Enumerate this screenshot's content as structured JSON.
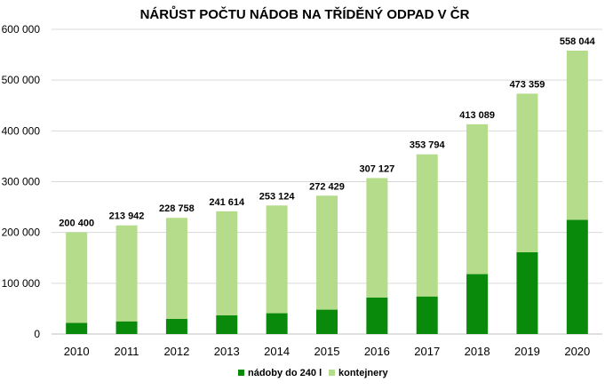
{
  "chart_data": {
    "type": "bar",
    "stacked": true,
    "title": "NÁRŮST POČTU NÁDOB NA TŘÍDĚNÝ ODPAD V ČR",
    "categories": [
      "2010",
      "2011",
      "2012",
      "2013",
      "2014",
      "2015",
      "2016",
      "2017",
      "2018",
      "2019",
      "2020"
    ],
    "series": [
      {
        "name": "nádoby do 240 l",
        "color": "#0a8a0a",
        "values": [
          22000,
          25000,
          30000,
          37000,
          41000,
          48000,
          72000,
          74000,
          118000,
          161000,
          225000
        ]
      },
      {
        "name": "kontejnery",
        "color": "#b5dc8a",
        "values": [
          178400,
          188942,
          198758,
          204614,
          212124,
          224429,
          235127,
          279794,
          295089,
          312359,
          333044
        ]
      }
    ],
    "totals": [
      200400,
      213942,
      228758,
      241614,
      253124,
      272429,
      307127,
      353794,
      413089,
      473359,
      558044
    ],
    "total_labels": [
      "200 400",
      "213 942",
      "228 758",
      "241 614",
      "253 124",
      "272 429",
      "307 127",
      "353 794",
      "413 089",
      "473 359",
      "558 044"
    ],
    "ylim": [
      0,
      600000
    ],
    "yticks": [
      0,
      100000,
      200000,
      300000,
      400000,
      500000,
      600000
    ],
    "ytick_labels": [
      "0",
      "100 000",
      "200 000",
      "300 000",
      "400 000",
      "500 000",
      "600 000"
    ],
    "grid": true,
    "legend_position": "bottom"
  }
}
